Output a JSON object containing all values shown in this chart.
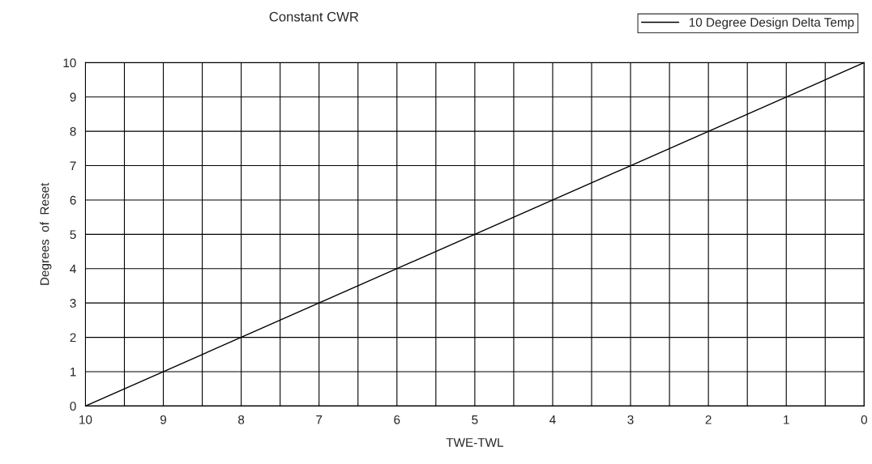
{
  "chart_data": {
    "type": "line",
    "title": "Constant CWR",
    "xlabel": "TWE-TWL",
    "ylabel": "Degrees  of  Reset",
    "x": [
      10,
      0
    ],
    "series": [
      {
        "name": "10 Degree Design Delta Temp",
        "color": "#000000",
        "values": [
          0,
          10
        ]
      }
    ],
    "xlim": [
      10,
      0
    ],
    "ylim": [
      0,
      10
    ],
    "xticks": [
      10,
      {
        "value": 9.5,
        "label": null
      },
      9,
      {
        "value": 8.5,
        "label": null
      },
      8,
      {
        "value": 7.5,
        "label": null
      },
      7,
      {
        "value": 6.5,
        "label": null
      },
      6,
      {
        "value": 5.5,
        "label": null
      },
      5,
      {
        "value": 4.5,
        "label": null
      },
      4,
      {
        "value": 3.5,
        "label": null
      },
      3,
      {
        "value": 2.5,
        "label": null
      },
      2,
      {
        "value": 1.5,
        "label": null
      },
      1,
      {
        "value": 0.5,
        "label": null
      },
      0
    ],
    "yticks": [
      0,
      1,
      2,
      3,
      4,
      5,
      6,
      7,
      8,
      9,
      10
    ],
    "grid": true,
    "legend": "top right",
    "marker": "none",
    "line_style": "solid"
  }
}
